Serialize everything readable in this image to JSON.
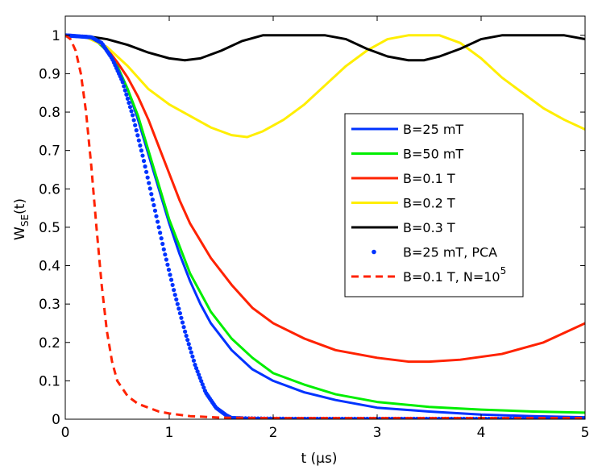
{
  "chart_data": {
    "type": "line",
    "title": "",
    "xlabel": "t (µs)",
    "ylabel_main": "W",
    "ylabel_sub": "SE",
    "ylabel_tail": "(t)",
    "xlim": [
      0,
      5
    ],
    "ylim": [
      0,
      1.05
    ],
    "xticks": [
      0,
      1,
      2,
      3,
      4,
      5
    ],
    "yticks": [
      0,
      0.1,
      0.2,
      0.3,
      0.4,
      0.5,
      0.6,
      0.7,
      0.8,
      0.9,
      1
    ],
    "xtick_labels": [
      "0",
      "1",
      "2",
      "3",
      "4",
      "5"
    ],
    "ytick_labels": [
      "0",
      "0.1",
      "0.2",
      "0.3",
      "0.4",
      "0.5",
      "0.6",
      "0.7",
      "0.8",
      "0.9",
      "1"
    ],
    "legend_position": "center-right",
    "series": [
      {
        "name": "B=25 mT",
        "color": "#0033ff",
        "style": "solid",
        "x": [
          0,
          0.2,
          0.3,
          0.4,
          0.5,
          0.6,
          0.7,
          0.8,
          0.9,
          1.0,
          1.1,
          1.2,
          1.3,
          1.4,
          1.6,
          1.8,
          2.0,
          2.3,
          2.6,
          3.0,
          3.5,
          4.0,
          4.5,
          5.0
        ],
        "y": [
          1,
          0.995,
          0.985,
          0.96,
          0.92,
          0.86,
          0.78,
          0.69,
          0.6,
          0.51,
          0.43,
          0.36,
          0.3,
          0.25,
          0.18,
          0.13,
          0.1,
          0.07,
          0.05,
          0.03,
          0.02,
          0.012,
          0.008,
          0.005
        ]
      },
      {
        "name": "B=50 mT",
        "color": "#00ee00",
        "style": "solid",
        "x": [
          0,
          0.2,
          0.3,
          0.4,
          0.5,
          0.6,
          0.7,
          0.8,
          0.9,
          1.0,
          1.1,
          1.2,
          1.3,
          1.4,
          1.6,
          1.8,
          2.0,
          2.3,
          2.6,
          3.0,
          3.5,
          4.0,
          4.5,
          5.0
        ],
        "y": [
          1,
          0.995,
          0.985,
          0.96,
          0.92,
          0.86,
          0.79,
          0.7,
          0.61,
          0.52,
          0.45,
          0.38,
          0.33,
          0.28,
          0.21,
          0.16,
          0.12,
          0.09,
          0.065,
          0.045,
          0.032,
          0.025,
          0.02,
          0.017
        ]
      },
      {
        "name": "B=0.1 T",
        "color": "#ff2200",
        "style": "solid",
        "x": [
          0,
          0.2,
          0.3,
          0.4,
          0.5,
          0.6,
          0.7,
          0.8,
          0.9,
          1.0,
          1.1,
          1.2,
          1.4,
          1.6,
          1.8,
          2.0,
          2.3,
          2.6,
          3.0,
          3.3,
          3.5,
          3.8,
          4.2,
          4.6,
          5.0
        ],
        "y": [
          1,
          0.995,
          0.985,
          0.965,
          0.93,
          0.89,
          0.84,
          0.78,
          0.71,
          0.64,
          0.57,
          0.51,
          0.42,
          0.35,
          0.29,
          0.25,
          0.21,
          0.18,
          0.16,
          0.15,
          0.15,
          0.155,
          0.17,
          0.2,
          0.25
        ]
      },
      {
        "name": "B=0.2 T",
        "color": "#ffee00",
        "style": "solid",
        "x": [
          0,
          0.2,
          0.4,
          0.6,
          0.8,
          1.0,
          1.2,
          1.4,
          1.6,
          1.75,
          1.9,
          2.1,
          2.3,
          2.5,
          2.7,
          2.9,
          3.1,
          3.3,
          3.45,
          3.6,
          3.8,
          4.0,
          4.2,
          4.4,
          4.6,
          4.8,
          5.0
        ],
        "y": [
          1,
          0.995,
          0.97,
          0.92,
          0.86,
          0.82,
          0.79,
          0.76,
          0.74,
          0.735,
          0.75,
          0.78,
          0.82,
          0.87,
          0.92,
          0.96,
          0.99,
          1.0,
          1.0,
          1.0,
          0.98,
          0.94,
          0.89,
          0.85,
          0.81,
          0.78,
          0.755
        ]
      },
      {
        "name": "B=0.3 T",
        "color": "#000000",
        "style": "solid",
        "x": [
          0,
          0.2,
          0.4,
          0.6,
          0.8,
          1.0,
          1.15,
          1.3,
          1.5,
          1.7,
          1.9,
          2.1,
          2.3,
          2.5,
          2.7,
          2.9,
          3.1,
          3.3,
          3.45,
          3.6,
          3.8,
          4.0,
          4.2,
          4.4,
          4.6,
          4.8,
          5.0
        ],
        "y": [
          1,
          0.998,
          0.99,
          0.975,
          0.955,
          0.94,
          0.935,
          0.94,
          0.96,
          0.985,
          1.0,
          1.0,
          1.0,
          1.0,
          0.99,
          0.965,
          0.945,
          0.935,
          0.935,
          0.945,
          0.965,
          0.99,
          1.0,
          1.0,
          1.0,
          1.0,
          0.99
        ]
      },
      {
        "name": "B=25 mT, PCA",
        "color": "#0033ff",
        "style": "dots",
        "x": [
          0,
          0.25,
          0.35,
          0.45,
          0.55,
          0.65,
          0.75,
          0.85,
          0.95,
          1.05,
          1.15,
          1.25,
          1.35,
          1.45,
          1.55,
          1.6,
          1.8,
          2.2,
          2.6,
          3.0,
          3.4,
          3.8,
          4.2,
          4.6,
          5.0
        ],
        "y": [
          1,
          0.995,
          0.98,
          0.94,
          0.88,
          0.79,
          0.68,
          0.56,
          0.44,
          0.33,
          0.23,
          0.14,
          0.07,
          0.03,
          0.01,
          0.003,
          0.002,
          0.001,
          0.001,
          0.001,
          0.001,
          0.001,
          0.001,
          0.001,
          0.001
        ]
      },
      {
        "name": "B=0.1 T, N=10",
        "name_sup": "5",
        "color": "#ff2200",
        "style": "dashed",
        "x": [
          0,
          0.05,
          0.1,
          0.15,
          0.2,
          0.25,
          0.3,
          0.35,
          0.4,
          0.45,
          0.5,
          0.6,
          0.7,
          0.8,
          0.9,
          1.0,
          1.2,
          1.5,
          2.0,
          3.0,
          4.0,
          5.0
        ],
        "y": [
          1,
          0.99,
          0.96,
          0.9,
          0.8,
          0.66,
          0.5,
          0.35,
          0.23,
          0.15,
          0.1,
          0.06,
          0.04,
          0.03,
          0.02,
          0.015,
          0.008,
          0.004,
          0.003,
          0.003,
          0.003,
          0.003
        ]
      }
    ]
  }
}
